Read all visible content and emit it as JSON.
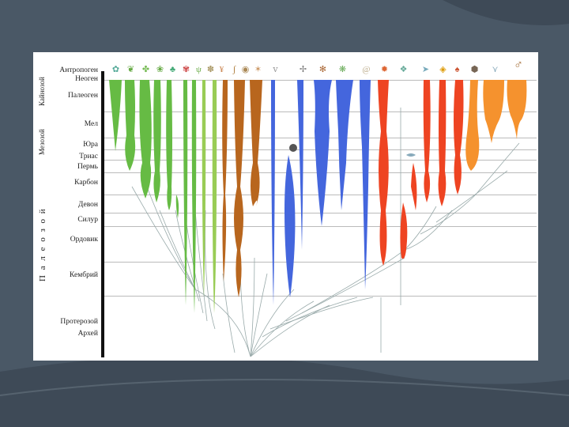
{
  "eras": [
    {
      "label": "Кайнозой"
    },
    {
      "label": "Мезозой"
    },
    {
      "label": "П а л е о з о й"
    }
  ],
  "periods": [
    {
      "label": "Антропоген"
    },
    {
      "label": "Неоген"
    },
    {
      "label": "Палеоген"
    },
    {
      "label": "Мел"
    },
    {
      "label": "Юра"
    },
    {
      "label": "Триас"
    },
    {
      "label": "Пермь"
    },
    {
      "label": "Карбон"
    },
    {
      "label": "Девон"
    },
    {
      "label": "Силур"
    },
    {
      "label": "Ордовик"
    },
    {
      "label": "Кембрий"
    },
    {
      "label": "Протерозой"
    },
    {
      "label": "Архей"
    }
  ],
  "colors": {
    "plants_green": "#66bb44",
    "plants_light": "#99cc55",
    "brown": "#b8661e",
    "blue": "#4466dd",
    "red": "#ee4422",
    "orange": "#f5922e",
    "background": "#4a5866"
  },
  "organism_icons": [
    "fern-icon",
    "moss-icon",
    "horsetail-icon",
    "plant-icon",
    "conifer-icon",
    "flower-icon",
    "grass-icon",
    "sponge-icon",
    "coral-icon",
    "worm-icon",
    "mollusc-icon",
    "starfish-icon",
    "crustacean-icon",
    "insect-icon",
    "spider-icon",
    "ammonite-icon",
    "snail-icon",
    "sea-urchin-icon",
    "fish-icon",
    "shark-icon",
    "bony-fish-icon",
    "frog-icon",
    "turtle-icon",
    "bird-icon",
    "human-icon"
  ]
}
